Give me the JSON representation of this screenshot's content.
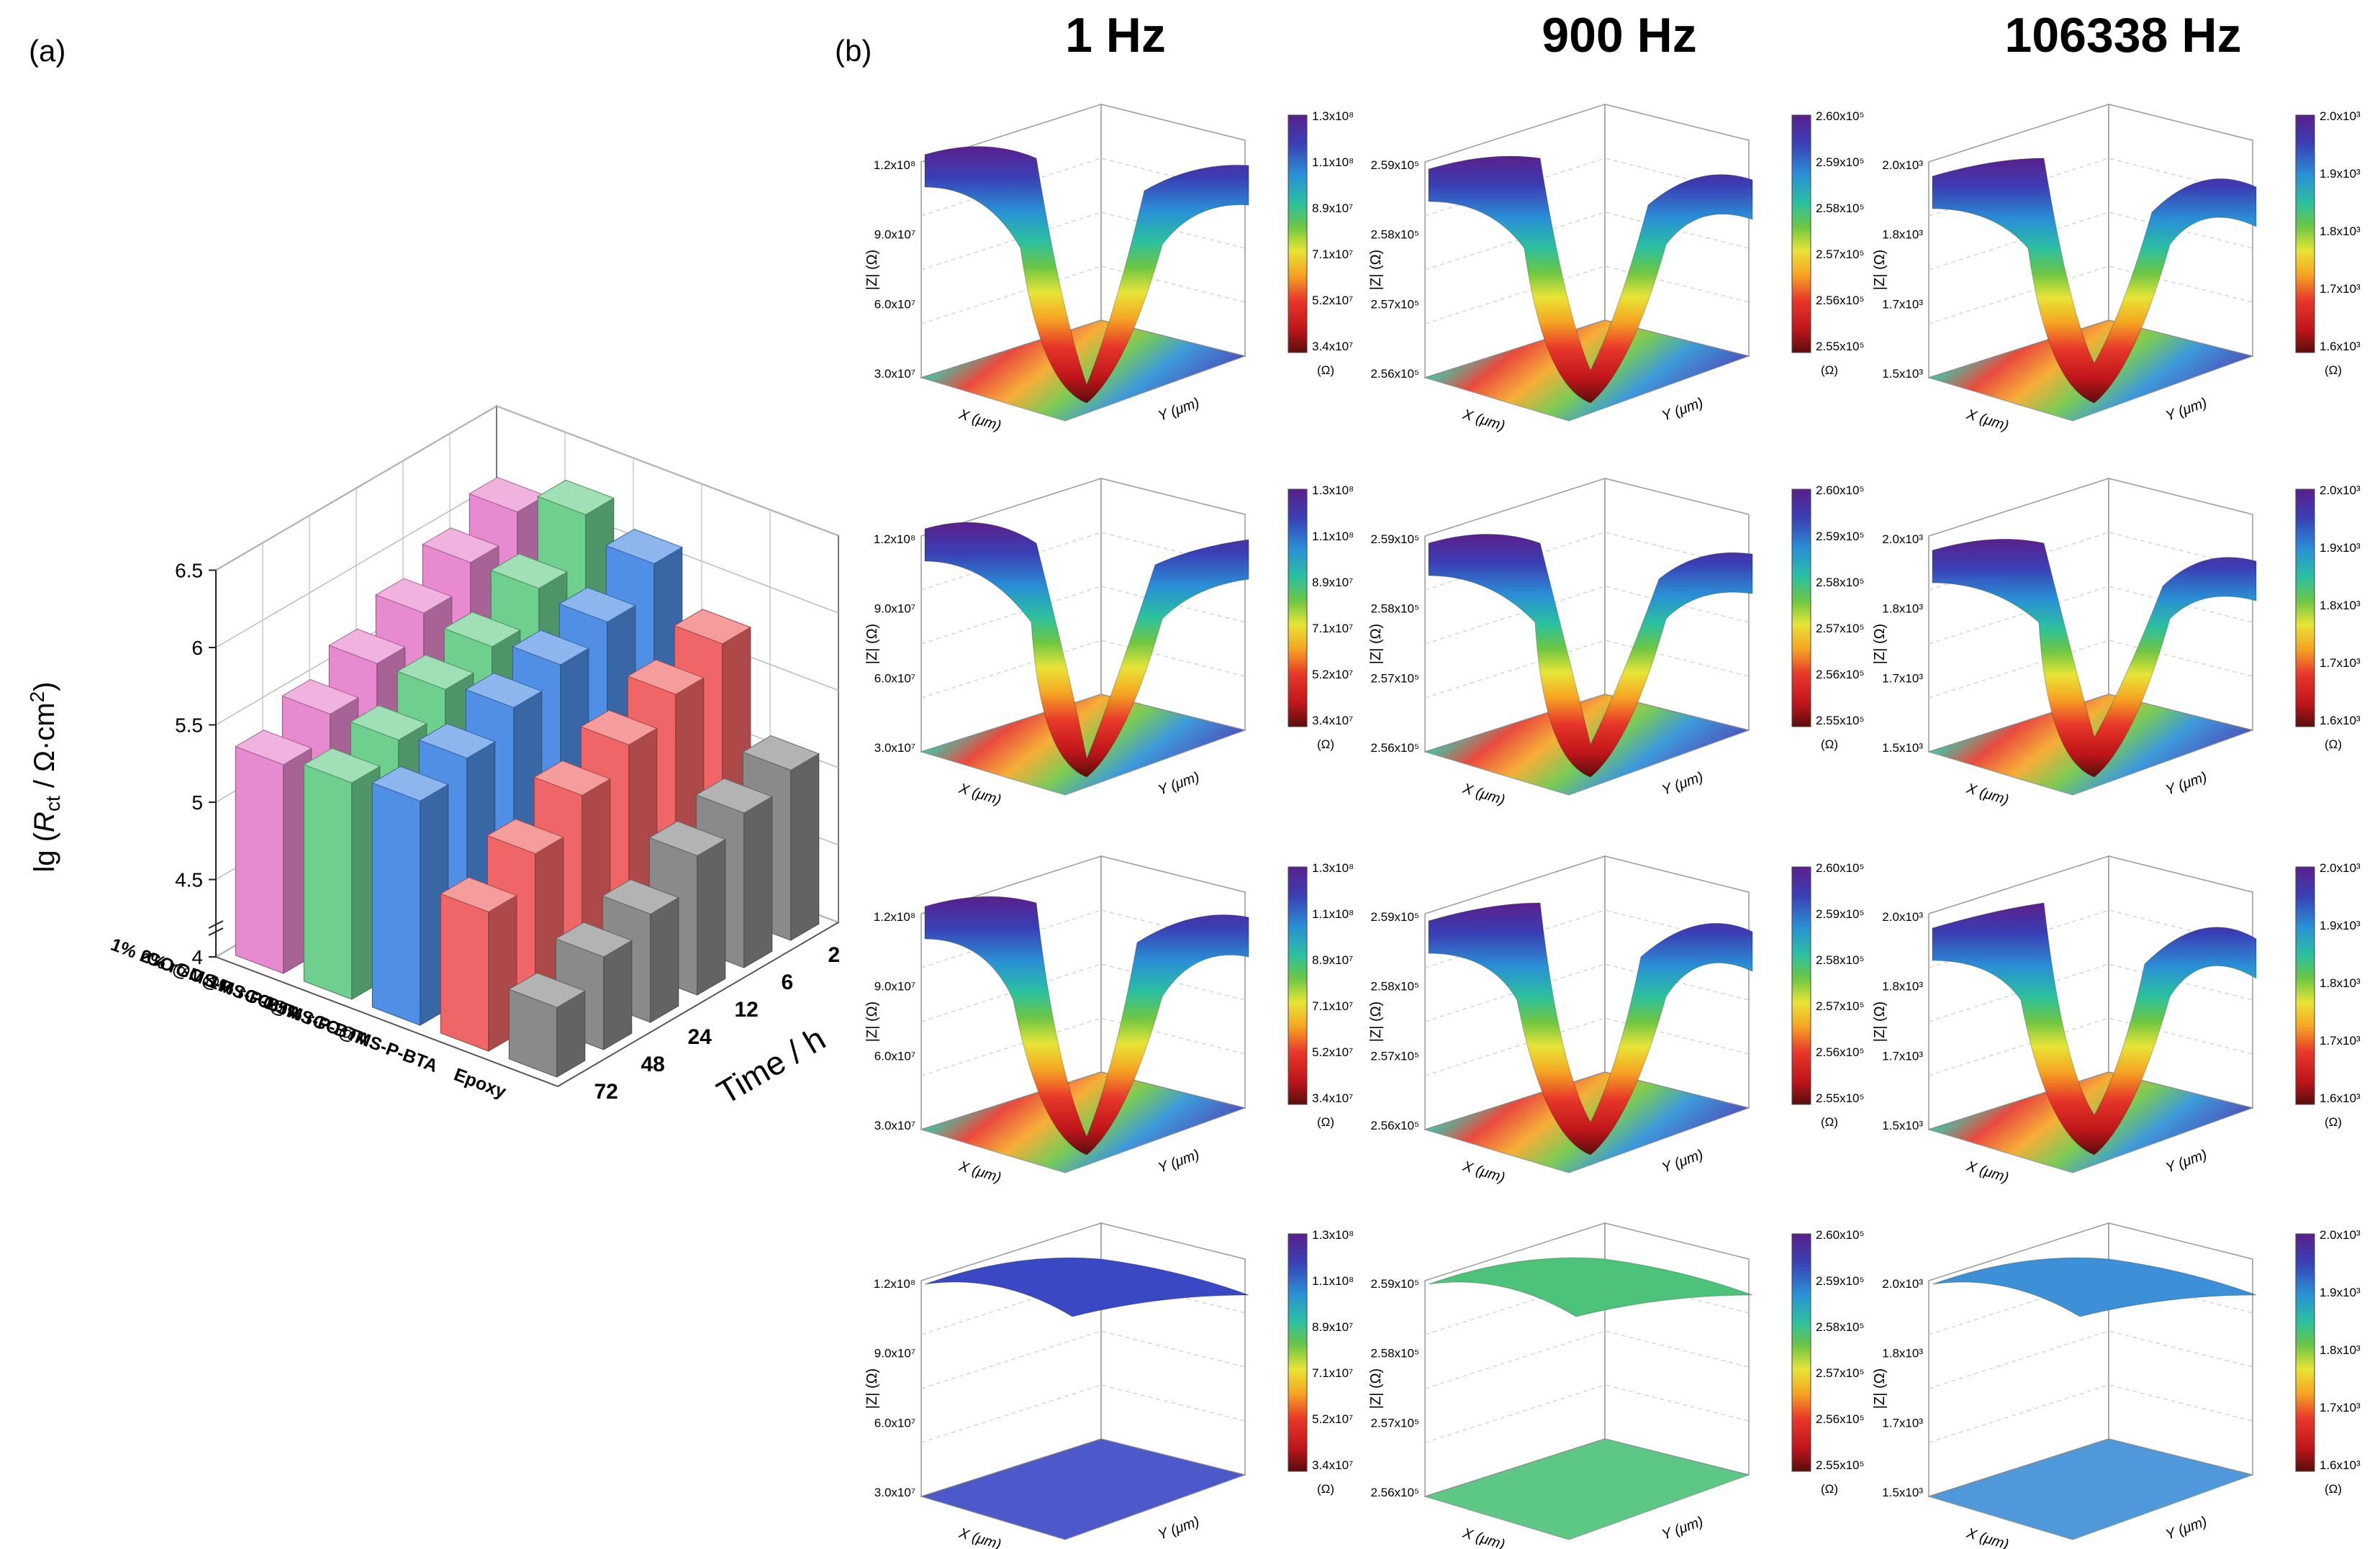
{
  "chart_data": {
    "type": "bar3d",
    "panel_label": "(a)",
    "categories": [
      "72",
      "48",
      "24",
      "12",
      "6",
      "2"
    ],
    "xlabel": "Time / h",
    "ylabel": {
      "prefix": "lg (",
      "symbol": "R",
      "subscript": "ct",
      "unit": " / Ω·cm",
      "superscript": "2",
      "suffix": ")"
    },
    "series": [
      {
        "name": "1% rGO@MS-P",
        "color": "#e88ad0",
        "values": [
          5.35,
          5.5,
          5.65,
          5.8,
          5.95,
          6.1
        ]
      },
      {
        "name": "2% rGO@MS-P-BTA",
        "color": "#6fcf8f",
        "values": [
          5.4,
          5.5,
          5.65,
          5.75,
          5.95,
          6.25
        ]
      },
      {
        "name": "1% rGO@MS-P-BTA",
        "color": "#4f8fe6",
        "values": [
          5.45,
          5.55,
          5.7,
          5.8,
          5.9,
          6.1
        ]
      },
      {
        "name": "0.5% rGO@MS-P-BTA",
        "color": "#f06666",
        "values": [
          4.9,
          5.1,
          5.3,
          5.45,
          5.6,
          5.75
        ]
      },
      {
        "name": "Epoxy",
        "color": "#8a8a8a",
        "values": [
          4.45,
          4.6,
          4.7,
          4.9,
          5.0,
          5.1
        ]
      }
    ],
    "ylim": [
      4,
      6.5
    ],
    "yticks": [
      4,
      4.5,
      5,
      5.5,
      6,
      6.5
    ],
    "grid": true
  },
  "panel_b": {
    "label": "(b)",
    "x_label": "X (μm)",
    "y_label": "Y (μm)",
    "z_label": "|Z| (Ω)",
    "colorbar_unit": "(Ω)",
    "columns": [
      {
        "title": "1 Hz",
        "colorbar_ticks": [
          "1.3x10⁸",
          "1.1x10⁸",
          "8.9x10⁷",
          "7.1x10⁷",
          "5.2x10⁷",
          "3.4x10⁷"
        ],
        "z_ticks": [
          "1.2x10⁸",
          "9.0x10⁷",
          "6.0x10⁷",
          "3.0x10⁷"
        ]
      },
      {
        "title": "900 Hz",
        "colorbar_ticks": [
          "2.60x10⁵",
          "2.59x10⁵",
          "2.58x10⁵",
          "2.57x10⁵",
          "2.56x10⁵",
          "2.55x10⁵"
        ],
        "z_ticks": [
          "2.59x10⁵",
          "2.58x10⁵",
          "2.57x10⁵",
          "2.56x10⁵"
        ]
      },
      {
        "title": "106338 Hz",
        "colorbar_ticks": [
          "2.0x10³",
          "1.9x10³",
          "1.8x10³",
          "1.7x10³",
          "1.6x10³"
        ],
        "z_ticks": [
          "2.0x10³",
          "1.8x10³",
          "1.7x10³",
          "1.5x10³"
        ]
      }
    ]
  }
}
